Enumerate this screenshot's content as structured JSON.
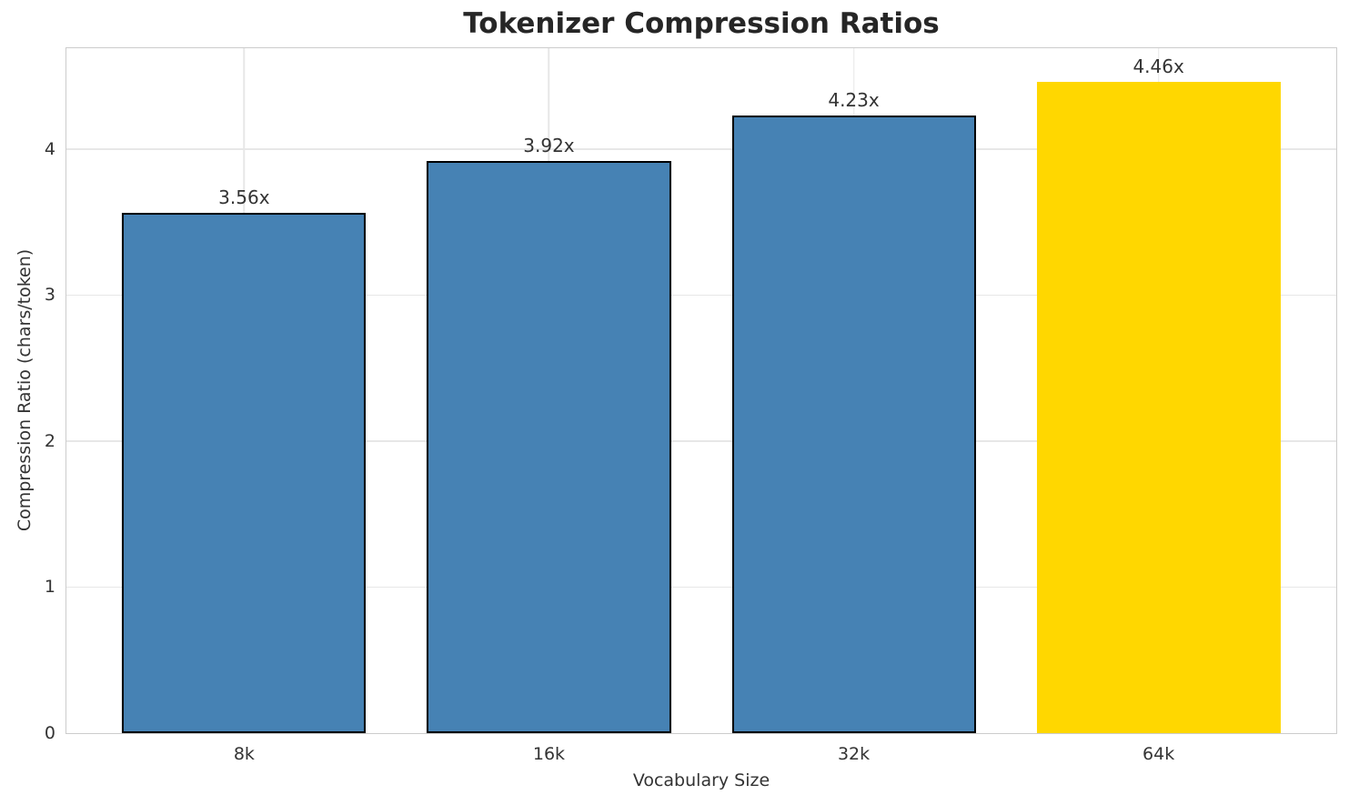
{
  "chart_data": {
    "type": "bar",
    "title": "Tokenizer Compression Ratios",
    "xlabel": "Vocabulary Size",
    "ylabel": "Compression Ratio (chars/token)",
    "categories": [
      "8k",
      "16k",
      "32k",
      "64k"
    ],
    "values": [
      3.56,
      3.92,
      4.23,
      4.46
    ],
    "bar_labels": [
      "3.56x",
      "3.92x",
      "4.23x",
      "4.46x"
    ],
    "bar_colors": [
      "#4682B4",
      "#4682B4",
      "#4682B4",
      "#FFD700"
    ],
    "bar_edges": [
      "#000000",
      "#000000",
      "#000000",
      "none"
    ],
    "yticks": [
      0,
      1,
      2,
      3,
      4
    ],
    "ylim": [
      0,
      4.69
    ],
    "xlim": [
      -0.583,
      3.583
    ],
    "bar_width": 0.8,
    "grid": true,
    "legend_position": "none",
    "colors": {
      "grid": "#e7e7e7",
      "spine": "#cccccc",
      "tick_text": "#333333",
      "title_text": "#262626"
    }
  }
}
